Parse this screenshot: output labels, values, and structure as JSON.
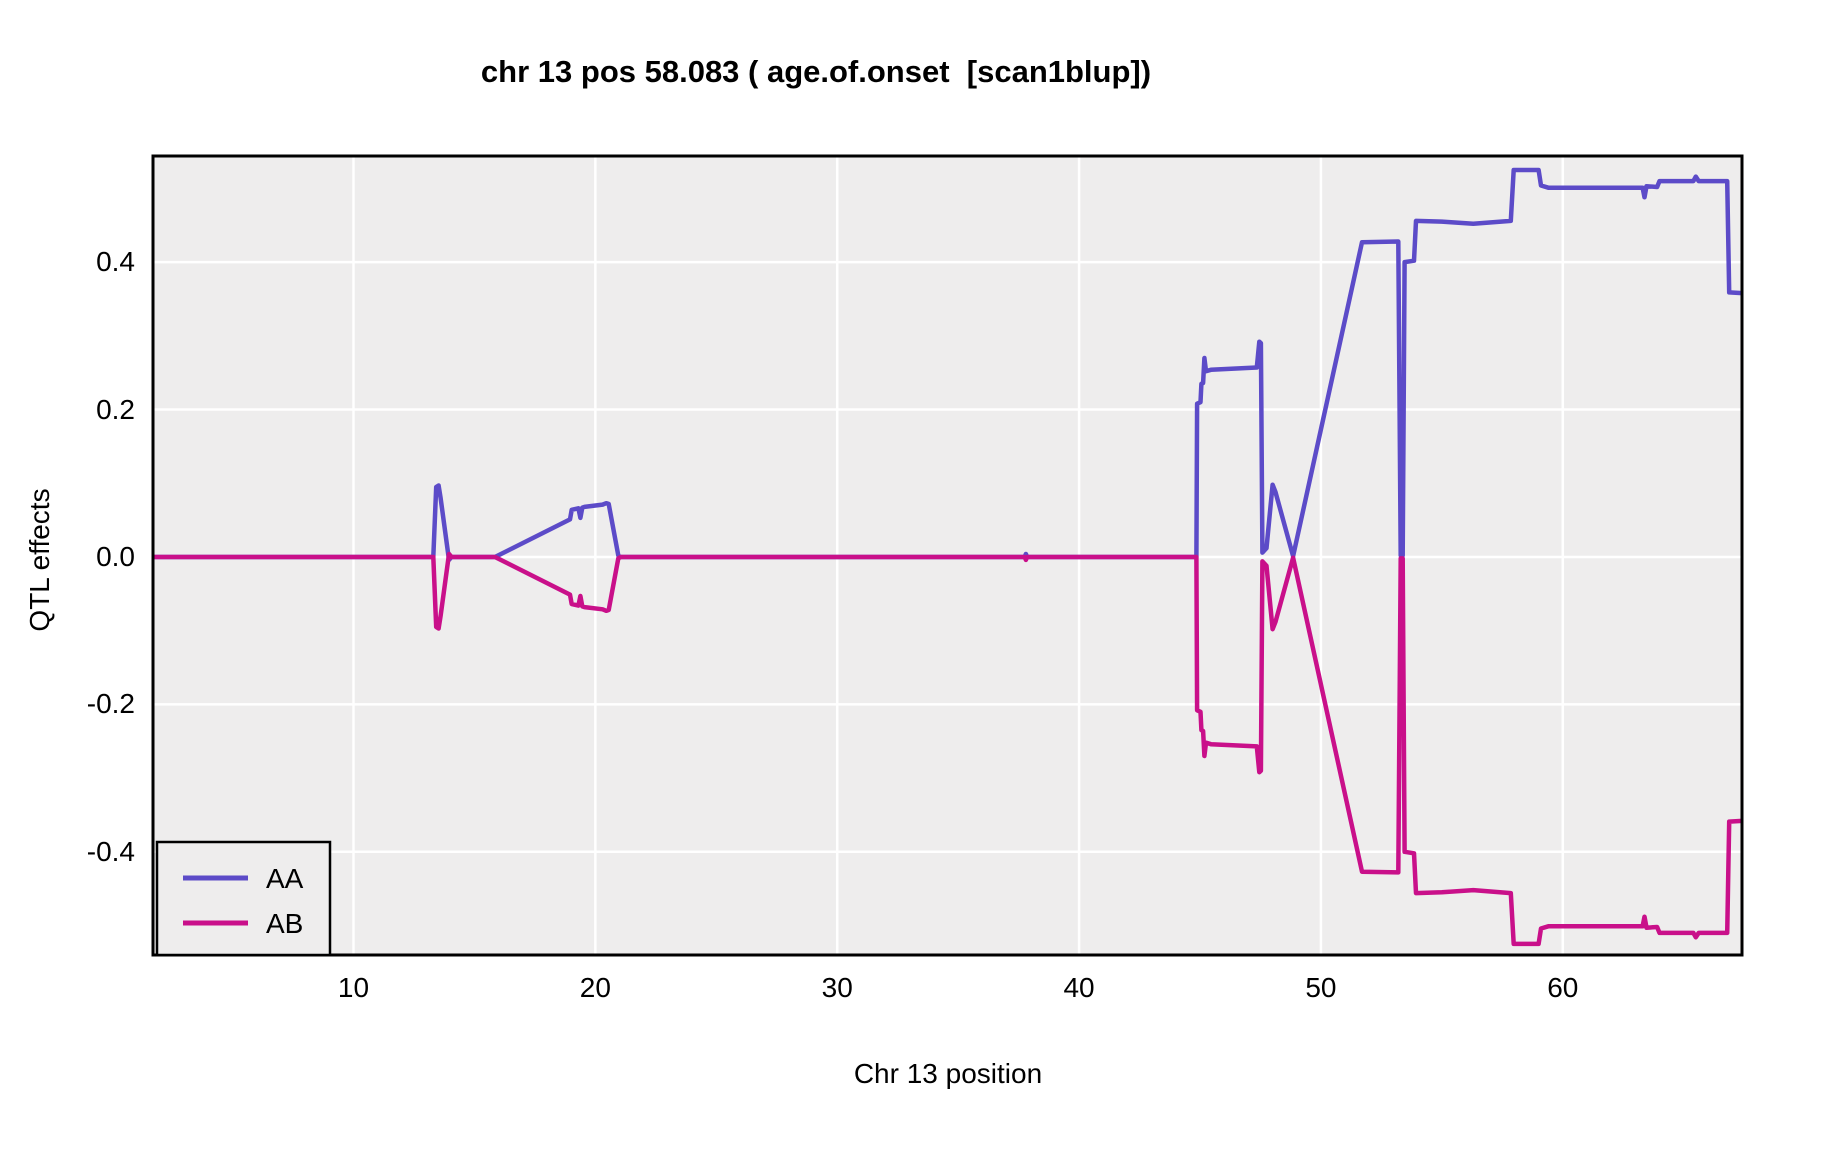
{
  "title": "chr 13 pos 58.083 ( age.of.onset  [scan1blup])",
  "chart_data": {
    "type": "line",
    "title": "chr 13 pos 58.083 ( age.of.onset  [scan1blup])",
    "xlabel": "Chr 13 position",
    "ylabel": "QTL effects",
    "xlim": [
      1.71,
      67.41
    ],
    "ylim": [
      -0.54,
      0.544
    ],
    "grid": true,
    "x_ticks": [
      10,
      20,
      30,
      40,
      50,
      60
    ],
    "x_tick_labels": [
      "10",
      "20",
      "30",
      "40",
      "50",
      "60"
    ],
    "y_ticks": [
      0.4,
      0.2,
      0.0,
      -0.2,
      -0.4
    ],
    "y_tick_labels": [
      "0.4",
      "0.2",
      "0.0",
      "-0.2",
      "-0.4"
    ],
    "panel_bg": "#EEEDED",
    "grid_color": "#FFFFFF",
    "border_color": "#000000",
    "legend": {
      "position": "bottom-left",
      "entries": [
        {
          "name": "AA",
          "color": "#5C4BC8"
        },
        {
          "name": "AB",
          "color": "#C9108A"
        }
      ]
    },
    "series": [
      {
        "name": "AA",
        "color": "#5C4BC8",
        "points": [
          [
            1.71,
            0
          ],
          [
            13.3,
            0
          ],
          [
            13.42,
            0.095
          ],
          [
            13.52,
            0.097
          ],
          [
            13.6,
            0.08
          ],
          [
            13.95,
            -0.004
          ],
          [
            14.05,
            0
          ],
          [
            15.85,
            0
          ],
          [
            18.95,
            0.051
          ],
          [
            19.02,
            0.064
          ],
          [
            19.3,
            0.066
          ],
          [
            19.38,
            0.053
          ],
          [
            19.46,
            0.067
          ],
          [
            19.55,
            0.068
          ],
          [
            20.3,
            0.071
          ],
          [
            20.45,
            0.073
          ],
          [
            20.55,
            0.072
          ],
          [
            20.95,
            0.002
          ],
          [
            21.05,
            0
          ],
          [
            37.75,
            0
          ],
          [
            37.8,
            0.004
          ],
          [
            37.85,
            0
          ],
          [
            44.85,
            0
          ],
          [
            44.88,
            0.208
          ],
          [
            45.02,
            0.21
          ],
          [
            45.06,
            0.235
          ],
          [
            45.13,
            0.236
          ],
          [
            45.18,
            0.27
          ],
          [
            45.25,
            0.252
          ],
          [
            45.45,
            0.254
          ],
          [
            47.35,
            0.257
          ],
          [
            47.45,
            0.292
          ],
          [
            47.52,
            0.29
          ],
          [
            47.58,
            0.006
          ],
          [
            47.75,
            0.012
          ],
          [
            48.0,
            0.098
          ],
          [
            48.12,
            0.088
          ],
          [
            48.85,
            0.001
          ],
          [
            51.7,
            0.427
          ],
          [
            53.2,
            0.428
          ],
          [
            53.3,
            0.002
          ],
          [
            53.38,
            0.002
          ],
          [
            53.46,
            0.4
          ],
          [
            53.85,
            0.402
          ],
          [
            53.93,
            0.456
          ],
          [
            55.0,
            0.455
          ],
          [
            56.3,
            0.452
          ],
          [
            57.85,
            0.456
          ],
          [
            57.97,
            0.525
          ],
          [
            59.0,
            0.525
          ],
          [
            59.1,
            0.504
          ],
          [
            59.4,
            0.501
          ],
          [
            63.3,
            0.501
          ],
          [
            63.38,
            0.488
          ],
          [
            63.46,
            0.503
          ],
          [
            63.9,
            0.502
          ],
          [
            64.0,
            0.51
          ],
          [
            65.4,
            0.51
          ],
          [
            65.5,
            0.516
          ],
          [
            65.62,
            0.51
          ],
          [
            66.8,
            0.51
          ],
          [
            66.88,
            0.359
          ],
          [
            67.41,
            0.358
          ]
        ]
      },
      {
        "name": "AB",
        "color": "#C9108A",
        "points": [
          [
            1.71,
            0
          ],
          [
            13.3,
            0
          ],
          [
            13.42,
            -0.095
          ],
          [
            13.52,
            -0.097
          ],
          [
            13.6,
            -0.08
          ],
          [
            13.95,
            0.004
          ],
          [
            14.05,
            0
          ],
          [
            15.85,
            0
          ],
          [
            18.95,
            -0.051
          ],
          [
            19.02,
            -0.064
          ],
          [
            19.3,
            -0.066
          ],
          [
            19.38,
            -0.053
          ],
          [
            19.46,
            -0.067
          ],
          [
            19.55,
            -0.068
          ],
          [
            20.3,
            -0.071
          ],
          [
            20.45,
            -0.073
          ],
          [
            20.55,
            -0.072
          ],
          [
            20.95,
            -0.002
          ],
          [
            21.05,
            0
          ],
          [
            37.75,
            0
          ],
          [
            37.8,
            -0.004
          ],
          [
            37.85,
            0
          ],
          [
            44.85,
            0
          ],
          [
            44.88,
            -0.208
          ],
          [
            45.02,
            -0.21
          ],
          [
            45.06,
            -0.235
          ],
          [
            45.13,
            -0.236
          ],
          [
            45.18,
            -0.27
          ],
          [
            45.25,
            -0.252
          ],
          [
            45.45,
            -0.254
          ],
          [
            47.35,
            -0.257
          ],
          [
            47.45,
            -0.292
          ],
          [
            47.52,
            -0.29
          ],
          [
            47.58,
            -0.006
          ],
          [
            47.75,
            -0.012
          ],
          [
            48.0,
            -0.098
          ],
          [
            48.12,
            -0.088
          ],
          [
            48.85,
            -0.001
          ],
          [
            51.7,
            -0.427
          ],
          [
            53.2,
            -0.428
          ],
          [
            53.3,
            -0.002
          ],
          [
            53.38,
            -0.002
          ],
          [
            53.46,
            -0.4
          ],
          [
            53.85,
            -0.402
          ],
          [
            53.93,
            -0.456
          ],
          [
            55.0,
            -0.455
          ],
          [
            56.3,
            -0.452
          ],
          [
            57.85,
            -0.456
          ],
          [
            57.97,
            -0.525
          ],
          [
            59.0,
            -0.525
          ],
          [
            59.1,
            -0.504
          ],
          [
            59.4,
            -0.501
          ],
          [
            63.3,
            -0.501
          ],
          [
            63.38,
            -0.488
          ],
          [
            63.46,
            -0.503
          ],
          [
            63.9,
            -0.502
          ],
          [
            64.0,
            -0.51
          ],
          [
            65.4,
            -0.51
          ],
          [
            65.5,
            -0.516
          ],
          [
            65.62,
            -0.51
          ],
          [
            66.8,
            -0.51
          ],
          [
            66.88,
            -0.359
          ],
          [
            67.41,
            -0.358
          ]
        ]
      }
    ]
  }
}
